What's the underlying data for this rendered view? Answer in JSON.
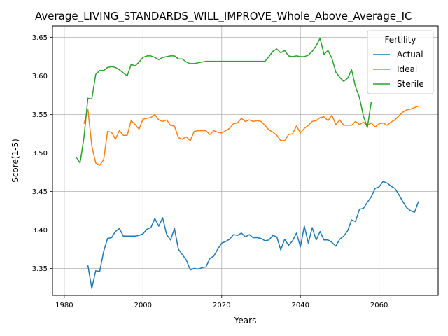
{
  "chart_data": {
    "type": "line",
    "title": "Average_LIVING_STANDARDS_WILL_IMPROVE_Whole_Above_Average_IC",
    "xlabel": "Years",
    "ylabel": "Score(1-5)",
    "xlim": [
      1977,
      2075
    ],
    "ylim": [
      3.315,
      3.665
    ],
    "xticks": [
      1980,
      2000,
      2020,
      2040,
      2060
    ],
    "yticks": [
      3.35,
      3.4,
      3.45,
      3.5,
      3.55,
      3.6,
      3.65
    ],
    "grid": true,
    "legend": {
      "title": "Fertility",
      "position": "top-right"
    },
    "series": [
      {
        "name": "Actual",
        "color": "#1f77b4",
        "x": [
          1986,
          1987,
          1988,
          1989,
          1990,
          1991,
          1992,
          1993,
          1994,
          1995,
          1996,
          1997,
          1998,
          1999,
          2000,
          2001,
          2002,
          2003,
          2004,
          2005,
          2006,
          2007,
          2008,
          2009,
          2010,
          2011,
          2012,
          2013,
          2014,
          2015,
          2016,
          2017,
          2018,
          2019,
          2020,
          2021,
          2022,
          2023,
          2024,
          2025,
          2026,
          2027,
          2028,
          2029,
          2030,
          2031,
          2032,
          2033,
          2034,
          2035,
          2036,
          2037,
          2038,
          2039,
          2040,
          2041,
          2042,
          2043,
          2044,
          2045,
          2046,
          2047,
          2048,
          2049,
          2050,
          2051,
          2052,
          2053,
          2054,
          2055,
          2056,
          2057,
          2058,
          2059,
          2060,
          2061,
          2062,
          2063,
          2064,
          2065,
          2066,
          2067,
          2068,
          2069,
          2070
        ],
        "values": [
          3.354,
          3.324,
          3.347,
          3.346,
          3.372,
          3.389,
          3.39,
          3.398,
          3.402,
          3.392,
          3.392,
          3.392,
          3.392,
          3.393,
          3.395,
          3.401,
          3.403,
          3.415,
          3.405,
          3.416,
          3.394,
          3.387,
          3.402,
          3.375,
          3.368,
          3.361,
          3.348,
          3.35,
          3.349,
          3.351,
          3.352,
          3.363,
          3.366,
          3.375,
          3.383,
          3.385,
          3.388,
          3.394,
          3.393,
          3.396,
          3.391,
          3.394,
          3.39,
          3.39,
          3.389,
          3.386,
          3.387,
          3.393,
          3.391,
          3.374,
          3.388,
          3.38,
          3.386,
          3.396,
          3.378,
          3.405,
          3.383,
          3.403,
          3.387,
          3.398,
          3.387,
          3.387,
          3.384,
          3.379,
          3.388,
          3.392,
          3.399,
          3.413,
          3.411,
          3.427,
          3.428,
          3.436,
          3.443,
          3.454,
          3.456,
          3.463,
          3.461,
          3.457,
          3.454,
          3.446,
          3.437,
          3.429,
          3.425,
          3.423,
          3.437
        ]
      },
      {
        "name": "Ideal",
        "color": "#ff7f0e",
        "x": [
          1985,
          1986,
          1987,
          1988,
          1989,
          1990,
          1991,
          1992,
          1993,
          1994,
          1995,
          1996,
          1997,
          1998,
          1999,
          2000,
          2001,
          2002,
          2003,
          2004,
          2005,
          2006,
          2007,
          2008,
          2009,
          2010,
          2011,
          2012,
          2013,
          2014,
          2015,
          2016,
          2017,
          2018,
          2019,
          2020,
          2021,
          2022,
          2023,
          2024,
          2025,
          2026,
          2027,
          2028,
          2029,
          2030,
          2031,
          2032,
          2033,
          2034,
          2035,
          2036,
          2037,
          2038,
          2039,
          2040,
          2041,
          2042,
          2043,
          2044,
          2045,
          2046,
          2047,
          2048,
          2049,
          2050,
          2051,
          2052,
          2053,
          2054,
          2055,
          2056,
          2057,
          2058,
          2059,
          2060,
          2061,
          2062,
          2063,
          2064,
          2065,
          2066,
          2067,
          2068,
          2069,
          2070
        ],
        "values": [
          3.538,
          3.557,
          3.509,
          3.487,
          3.484,
          3.491,
          3.528,
          3.527,
          3.518,
          3.529,
          3.523,
          3.523,
          3.542,
          3.537,
          3.531,
          3.544,
          3.545,
          3.546,
          3.55,
          3.543,
          3.541,
          3.543,
          3.536,
          3.535,
          3.52,
          3.518,
          3.521,
          3.516,
          3.528,
          3.529,
          3.529,
          3.529,
          3.524,
          3.529,
          3.527,
          3.526,
          3.529,
          3.532,
          3.538,
          3.539,
          3.545,
          3.541,
          3.543,
          3.541,
          3.542,
          3.541,
          3.536,
          3.53,
          3.527,
          3.523,
          3.516,
          3.516,
          3.524,
          3.525,
          3.535,
          3.526,
          3.532,
          3.536,
          3.541,
          3.542,
          3.546,
          3.547,
          3.542,
          3.549,
          3.537,
          3.543,
          3.536,
          3.536,
          3.536,
          3.541,
          3.537,
          3.54,
          3.536,
          3.539,
          3.534,
          3.538,
          3.539,
          3.536,
          3.54,
          3.543,
          3.548,
          3.553,
          3.556,
          3.557,
          3.559,
          3.561
        ]
      },
      {
        "name": "Sterile",
        "color": "#2ca02c",
        "x": [
          1983,
          1984,
          1985,
          1986,
          1987,
          1988,
          1989,
          1990,
          1991,
          1992,
          1993,
          1994,
          1995,
          1996,
          1997,
          1998,
          1999,
          2000,
          2001,
          2002,
          2003,
          2004,
          2005,
          2006,
          2007,
          2008,
          2009,
          2010,
          2011,
          2012,
          2013,
          2014,
          2015,
          2016,
          2017,
          2018,
          2019,
          2020,
          2021,
          2022,
          2023,
          2024,
          2025,
          2026,
          2027,
          2028,
          2029,
          2030,
          2031,
          2032,
          2033,
          2034,
          2035,
          2036,
          2037,
          2038,
          2039,
          2040,
          2041,
          2042,
          2043,
          2044,
          2045,
          2046,
          2047,
          2048,
          2049,
          2050,
          2051,
          2052,
          2053,
          2054,
          2055,
          2056,
          2057,
          2058
        ],
        "values": [
          3.495,
          3.487,
          3.52,
          3.571,
          3.57,
          3.602,
          3.607,
          3.607,
          3.611,
          3.612,
          3.611,
          3.608,
          3.604,
          3.6,
          3.615,
          3.613,
          3.618,
          3.624,
          3.626,
          3.626,
          3.624,
          3.621,
          3.624,
          3.625,
          3.626,
          3.626,
          3.622,
          3.622,
          3.618,
          3.616,
          3.616,
          3.617,
          3.618,
          3.619,
          3.619,
          3.619,
          3.619,
          3.619,
          3.619,
          3.619,
          3.619,
          3.619,
          3.619,
          3.619,
          3.619,
          3.619,
          3.619,
          3.619,
          3.619,
          3.625,
          3.632,
          3.635,
          3.63,
          3.633,
          3.626,
          3.625,
          3.626,
          3.625,
          3.625,
          3.627,
          3.632,
          3.639,
          3.649,
          3.628,
          3.633,
          3.623,
          3.605,
          3.598,
          3.593,
          3.597,
          3.608,
          3.586,
          3.572,
          3.548,
          3.533,
          3.566
        ]
      }
    ]
  }
}
